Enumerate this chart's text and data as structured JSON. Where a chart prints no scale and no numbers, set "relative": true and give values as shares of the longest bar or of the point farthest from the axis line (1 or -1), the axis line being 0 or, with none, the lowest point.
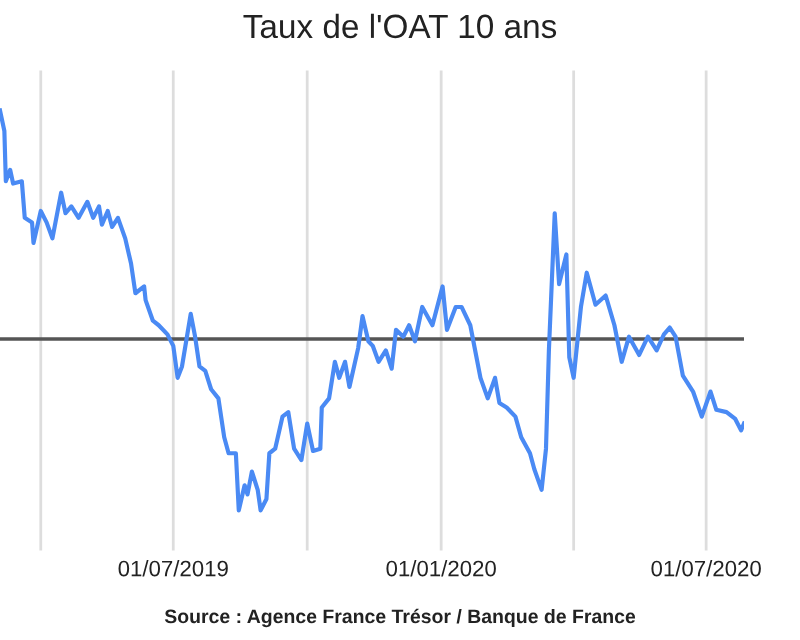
{
  "chart_data": {
    "type": "line",
    "title": "Taux de l'OAT 10 ans",
    "relative": true,
    "grid": "x",
    "marker": "none",
    "line_style": "solid",
    "annotations": [
      "Source : Agence France Trésor / Banque de France"
    ],
    "xlim": [
      "2019-03-04",
      "2020-07-27"
    ],
    "xticks": [
      {
        "value": "2019-04-01",
        "label": null
      },
      {
        "value": "2019-07-01",
        "label": "01/07/2019"
      },
      {
        "value": "2019-10-01",
        "label": null
      },
      {
        "value": "2020-01-01",
        "label": "01/01/2020"
      },
      {
        "value": "2020-04-01",
        "label": null
      },
      {
        "value": "2020-07-01",
        "label": "01/07/2020"
      }
    ],
    "x": [
      "2019-03-04",
      "2019-03-07",
      "2019-03-08",
      "2019-03-11",
      "2019-03-13",
      "2019-03-19",
      "2019-03-21",
      "2019-03-26",
      "2019-03-27",
      "2019-04-01",
      "2019-04-05",
      "2019-04-09",
      "2019-04-15",
      "2019-04-18",
      "2019-04-22",
      "2019-04-27",
      "2019-05-03",
      "2019-05-07",
      "2019-05-11",
      "2019-05-13",
      "2019-05-17",
      "2019-05-20",
      "2019-05-24",
      "2019-05-29",
      "2019-06-02",
      "2019-06-05",
      "2019-06-11",
      "2019-06-12",
      "2019-06-17",
      "2019-06-21",
      "2019-06-27",
      "2019-07-01",
      "2019-07-04",
      "2019-07-07",
      "2019-07-13",
      "2019-07-16",
      "2019-07-19",
      "2019-07-23",
      "2019-07-27",
      "2019-08-01",
      "2019-08-05",
      "2019-08-08",
      "2019-08-13",
      "2019-08-15",
      "2019-08-19",
      "2019-08-21",
      "2019-08-24",
      "2019-08-28",
      "2019-08-30",
      "2019-09-03",
      "2019-09-05",
      "2019-09-09",
      "2019-09-14",
      "2019-09-18",
      "2019-09-22",
      "2019-09-27",
      "2019-10-01",
      "2019-10-05",
      "2019-10-10",
      "2019-10-11",
      "2019-10-16",
      "2019-10-20",
      "2019-10-23",
      "2019-10-27",
      "2019-10-30",
      "2019-11-05",
      "2019-11-08",
      "2019-11-12",
      "2019-11-15",
      "2019-11-19",
      "2019-11-24",
      "2019-11-28",
      "2019-12-01",
      "2019-12-06",
      "2019-12-10",
      "2019-12-14",
      "2019-12-19",
      "2019-12-26",
      "2020-01-02",
      "2020-01-05",
      "2020-01-11",
      "2020-01-15",
      "2020-01-21",
      "2020-01-28",
      "2020-02-02",
      "2020-02-07",
      "2020-02-10",
      "2020-02-15",
      "2020-02-21",
      "2020-02-25",
      "2020-03-02",
      "2020-03-05",
      "2020-03-10",
      "2020-03-13",
      "2020-03-15",
      "2020-03-19",
      "2020-03-22",
      "2020-03-27",
      "2020-03-29",
      "2020-04-01",
      "2020-04-06",
      "2020-04-10",
      "2020-04-16",
      "2020-04-23",
      "2020-04-29",
      "2020-05-04",
      "2020-05-09",
      "2020-05-16",
      "2020-05-22",
      "2020-05-28",
      "2020-06-02",
      "2020-06-06",
      "2020-06-10",
      "2020-06-15",
      "2020-06-22",
      "2020-06-28",
      "2020-07-04",
      "2020-07-08",
      "2020-07-15",
      "2020-07-21",
      "2020-07-25",
      "2020-07-27"
    ],
    "series": [
      {
        "color": "#4a8af4",
        "values": [
          1.0,
          0.91,
          0.69,
          0.74,
          0.68,
          0.69,
          0.53,
          0.51,
          0.42,
          0.56,
          0.51,
          0.44,
          0.64,
          0.55,
          0.58,
          0.53,
          0.6,
          0.53,
          0.58,
          0.5,
          0.56,
          0.49,
          0.53,
          0.44,
          0.33,
          0.2,
          0.23,
          0.17,
          0.08,
          0.06,
          0.02,
          -0.03,
          -0.17,
          -0.12,
          0.11,
          0.01,
          -0.12,
          -0.14,
          -0.22,
          -0.26,
          -0.43,
          -0.5,
          -0.5,
          -0.75,
          -0.64,
          -0.68,
          -0.58,
          -0.66,
          -0.75,
          -0.7,
          -0.5,
          -0.48,
          -0.34,
          -0.32,
          -0.48,
          -0.53,
          -0.37,
          -0.49,
          -0.48,
          -0.3,
          -0.26,
          -0.1,
          -0.17,
          -0.1,
          -0.21,
          -0.04,
          0.1,
          -0.01,
          -0.03,
          -0.1,
          -0.05,
          -0.13,
          0.04,
          0.01,
          0.06,
          -0.01,
          0.14,
          0.06,
          0.23,
          0.04,
          0.14,
          0.14,
          0.06,
          -0.17,
          -0.26,
          -0.17,
          -0.28,
          -0.3,
          -0.34,
          -0.43,
          -0.5,
          -0.57,
          -0.66,
          -0.48,
          -0.05,
          0.55,
          0.24,
          0.37,
          -0.08,
          -0.17,
          0.14,
          0.29,
          0.15,
          0.19,
          0.06,
          -0.1,
          0.01,
          -0.07,
          0.01,
          -0.05,
          0.02,
          0.05,
          0.01,
          -0.16,
          -0.23,
          -0.34,
          -0.23,
          -0.31,
          -0.32,
          -0.35,
          -0.4,
          -0.37
        ]
      }
    ]
  }
}
